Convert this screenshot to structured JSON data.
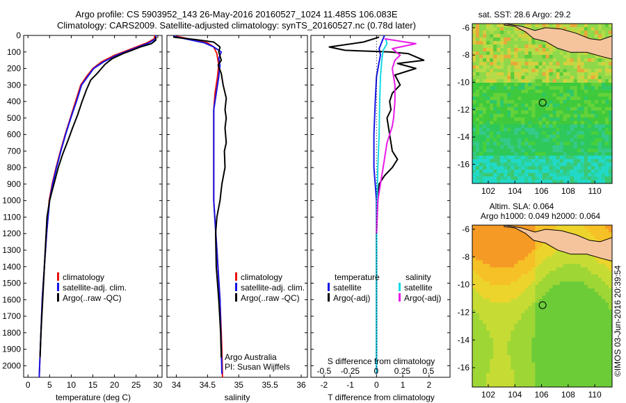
{
  "header": {
    "line1": "Argo profile: CS 5903952_143 26-May-2016 20160527_1024 11.485S 106.083E",
    "line2": "Climatology: CARS2009. Satellite-adjusted climatology: synTS_20160527.nc (0.78d later)"
  },
  "side_stamp": "©IMOS 03-Jun-2016 20:39:54",
  "colors": {
    "climatology": "#e8120f",
    "satellite": "#1414e6",
    "argo": "#000000",
    "sal_satellite": "#11d9e6",
    "sal_argo": "#e61ae6",
    "land": "#f5c49c"
  },
  "chart_data": [
    {
      "id": "temperature",
      "type": "line",
      "xlabel": "temperature (deg C)",
      "ylabel": "",
      "xlim": [
        -1,
        31
      ],
      "ylim": [
        0,
        2070
      ],
      "y_inverted": true,
      "xticks": [
        0,
        5,
        10,
        15,
        20,
        25,
        30
      ],
      "yticks": [
        0,
        100,
        200,
        300,
        400,
        500,
        600,
        700,
        800,
        900,
        1000,
        1100,
        1200,
        1300,
        1400,
        1500,
        1600,
        1700,
        1800,
        1900,
        2000
      ],
      "legend": [
        "climatology",
        "satellite-adj. clim.",
        "Argo(..raw -QC)"
      ],
      "series": [
        {
          "name": "climatology",
          "color": "#e8120f",
          "points": [
            [
              29.3,
              0
            ],
            [
              29.2,
              20
            ],
            [
              27.5,
              45
            ],
            [
              24,
              80
            ],
            [
              20,
              120
            ],
            [
              17,
              160
            ],
            [
              15,
              200
            ],
            [
              13.5,
              250
            ],
            [
              12.2,
              300
            ],
            [
              11,
              400
            ],
            [
              9.8,
              500
            ],
            [
              8.6,
              600
            ],
            [
              7.5,
              700
            ],
            [
              6.5,
              800
            ],
            [
              5.6,
              900
            ],
            [
              4.9,
              1000
            ],
            [
              4.3,
              1200
            ],
            [
              3.8,
              1400
            ],
            [
              3.3,
              1600
            ],
            [
              3,
              1800
            ],
            [
              2.7,
              2000
            ],
            [
              2.6,
              2070
            ]
          ]
        },
        {
          "name": "satellite-adj. clim.",
          "color": "#1414e6",
          "points": [
            [
              29.6,
              0
            ],
            [
              29.5,
              20
            ],
            [
              28,
              45
            ],
            [
              24.5,
              80
            ],
            [
              20.5,
              120
            ],
            [
              17.5,
              160
            ],
            [
              15.2,
              200
            ],
            [
              13.8,
              250
            ],
            [
              12.4,
              300
            ],
            [
              11.2,
              400
            ],
            [
              9.9,
              500
            ],
            [
              8.7,
              600
            ],
            [
              7.6,
              700
            ],
            [
              6.6,
              800
            ],
            [
              5.7,
              900
            ],
            [
              5,
              1000
            ],
            [
              4.3,
              1200
            ],
            [
              3.8,
              1400
            ],
            [
              3.3,
              1600
            ],
            [
              3,
              1800
            ],
            [
              2.7,
              2000
            ],
            [
              2.6,
              2070
            ]
          ]
        },
        {
          "name": "Argo(..raw -QC)",
          "color": "#000000",
          "points": [
            [
              29.6,
              10
            ],
            [
              29.5,
              30
            ],
            [
              28.5,
              50
            ],
            [
              26,
              70
            ],
            [
              24,
              90
            ],
            [
              22,
              110
            ],
            [
              19.5,
              140
            ],
            [
              17.8,
              175
            ],
            [
              17,
              200
            ],
            [
              16,
              230
            ],
            [
              14.5,
              270
            ],
            [
              13.5,
              330
            ],
            [
              12.5,
              400
            ],
            [
              11.5,
              480
            ],
            [
              10.3,
              560
            ],
            [
              9.2,
              640
            ],
            [
              8,
              720
            ],
            [
              7,
              800
            ],
            [
              6.2,
              880
            ],
            [
              5.5,
              950
            ],
            [
              5,
              1000
            ],
            [
              4.4,
              1100
            ],
            [
              4.2,
              1200
            ],
            [
              3.8,
              1400
            ],
            [
              3.4,
              1600
            ],
            [
              3,
              1800
            ],
            [
              2.8,
              1950
            ]
          ]
        }
      ]
    },
    {
      "id": "salinity",
      "type": "line",
      "xlabel": "salinity",
      "ylabel": "",
      "xlim": [
        33.85,
        36.1
      ],
      "ylim": [
        0,
        2070
      ],
      "y_inverted": true,
      "xticks": [
        34,
        34.5,
        35,
        35.5,
        36
      ],
      "xtick_labels": [
        "34",
        "34.5",
        "35",
        "35.5",
        "36"
      ],
      "legend": [
        "climatology",
        "satellite-adj. clim.",
        "Argo(..raw -QC)"
      ],
      "annotation": [
        "Argo Australia",
        "PI: Susan Wijffels"
      ],
      "series": [
        {
          "name": "climatology",
          "color": "#e8120f",
          "points": [
            [
              34.0,
              5
            ],
            [
              34.25,
              25
            ],
            [
              34.5,
              45
            ],
            [
              34.6,
              70
            ],
            [
              34.65,
              110
            ],
            [
              34.68,
              180
            ],
            [
              34.66,
              250
            ],
            [
              34.62,
              350
            ],
            [
              34.6,
              450
            ],
            [
              34.6,
              700
            ],
            [
              34.6,
              1000
            ],
            [
              34.65,
              1300
            ],
            [
              34.7,
              1600
            ],
            [
              34.73,
              1900
            ],
            [
              34.74,
              2070
            ]
          ]
        },
        {
          "name": "satellite-adj. clim.",
          "color": "#1414e6",
          "points": [
            [
              33.95,
              5
            ],
            [
              34.2,
              25
            ],
            [
              34.45,
              45
            ],
            [
              34.6,
              70
            ],
            [
              34.72,
              100
            ],
            [
              34.68,
              140
            ],
            [
              34.7,
              180
            ],
            [
              34.68,
              250
            ],
            [
              34.64,
              350
            ],
            [
              34.6,
              450
            ],
            [
              34.6,
              700
            ],
            [
              34.6,
              1000
            ],
            [
              34.65,
              1300
            ],
            [
              34.7,
              1600
            ],
            [
              34.72,
              1900
            ],
            [
              34.73,
              2050
            ]
          ]
        },
        {
          "name": "Argo(..raw -QC)",
          "color": "#000000",
          "points": [
            [
              33.95,
              10
            ],
            [
              34.3,
              25
            ],
            [
              34.6,
              40
            ],
            [
              34.7,
              70
            ],
            [
              34.68,
              100
            ],
            [
              34.72,
              150
            ],
            [
              34.67,
              180
            ],
            [
              34.72,
              230
            ],
            [
              34.75,
              300
            ],
            [
              34.8,
              380
            ],
            [
              34.78,
              450
            ],
            [
              34.8,
              500
            ],
            [
              34.78,
              560
            ],
            [
              34.8,
              650
            ],
            [
              34.77,
              700
            ],
            [
              34.78,
              800
            ],
            [
              34.73,
              900
            ],
            [
              34.7,
              1000
            ],
            [
              34.65,
              1100
            ],
            [
              34.63,
              1200
            ],
            [
              34.64,
              1400
            ],
            [
              34.68,
              1600
            ],
            [
              34.71,
              1800
            ],
            [
              34.72,
              1950
            ]
          ]
        }
      ]
    },
    {
      "id": "difference",
      "type": "line",
      "xlabel": "T difference from climatology",
      "top_axis_label": "S difference from climatology",
      "xlim": [
        -2.5,
        2.8
      ],
      "ylim": [
        0,
        2070
      ],
      "y_inverted": true,
      "xticks": [
        -2,
        -1,
        0,
        1,
        2
      ],
      "top_ticks": [
        -0.5,
        -0.25,
        0,
        0.25,
        0.5
      ],
      "legend_temperature_title": "temperature",
      "legend_salinity_title": "salinity",
      "legend": [
        "satellite",
        "Argo(-adj)",
        "satellite",
        "Argo(-adj)"
      ],
      "series": [
        {
          "name": "temperature satellite",
          "color": "#1414e6",
          "points": [
            [
              0.3,
              0
            ],
            [
              0.2,
              40
            ],
            [
              0.1,
              80
            ],
            [
              0.15,
              120
            ],
            [
              0.1,
              160
            ],
            [
              0,
              250
            ],
            [
              -0.05,
              400
            ],
            [
              -0.1,
              600
            ],
            [
              -0.1,
              800
            ],
            [
              0,
              1000
            ],
            [
              0,
              1300
            ],
            [
              0,
              1600
            ],
            [
              0,
              1900
            ],
            [
              0,
              2050
            ]
          ]
        },
        {
          "name": "temperature Argo(-adj)",
          "color": "#000000",
          "points": [
            [
              0.1,
              10
            ],
            [
              -0.5,
              40
            ],
            [
              -1.8,
              70
            ],
            [
              -1.2,
              90
            ],
            [
              0.5,
              100
            ],
            [
              1.2,
              110
            ],
            [
              1.8,
              150
            ],
            [
              0.8,
              170
            ],
            [
              1.5,
              200
            ],
            [
              0.7,
              240
            ],
            [
              0.9,
              300
            ],
            [
              0.6,
              350
            ],
            [
              0.5,
              400
            ],
            [
              0.55,
              450
            ],
            [
              0.4,
              500
            ],
            [
              0.45,
              550
            ],
            [
              0.5,
              600
            ],
            [
              0.6,
              700
            ],
            [
              0.8,
              750
            ],
            [
              0.6,
              800
            ],
            [
              0.3,
              850
            ],
            [
              0.1,
              900
            ],
            [
              0.05,
              1000
            ],
            [
              0,
              1200
            ],
            [
              0,
              1500
            ],
            [
              0,
              1800
            ],
            [
              0,
              1950
            ]
          ]
        },
        {
          "name": "salinity satellite",
          "color": "#11d9e6",
          "points": [
            [
              0.35,
              20
            ],
            [
              0.4,
              50
            ],
            [
              0.25,
              90
            ],
            [
              0.2,
              150
            ],
            [
              0.15,
              250
            ],
            [
              0.12,
              400
            ],
            [
              0.1,
              600
            ],
            [
              0.05,
              800
            ],
            [
              0.02,
              1000
            ],
            [
              0,
              1300
            ],
            [
              0,
              1600
            ],
            [
              0,
              1900
            ],
            [
              0,
              2050
            ]
          ]
        },
        {
          "name": "salinity Argo(-adj)",
          "color": "#e61ae6",
          "points": [
            [
              0.3,
              20
            ],
            [
              1.5,
              50
            ],
            [
              0.6,
              80
            ],
            [
              0.9,
              120
            ],
            [
              0.7,
              150
            ],
            [
              0.6,
              200
            ],
            [
              0.65,
              250
            ],
            [
              0.7,
              300
            ],
            [
              0.7,
              400
            ],
            [
              0.65,
              500
            ],
            [
              0.6,
              550
            ],
            [
              0.4,
              650
            ],
            [
              0.3,
              750
            ],
            [
              0.15,
              900
            ],
            [
              0.05,
              1000
            ],
            [
              0,
              1200
            ]
          ]
        }
      ]
    },
    {
      "id": "sst_map",
      "type": "heatmap",
      "title": "sat. SST: 28.6  Argo: 29.2",
      "xlim": [
        100.8,
        111.3
      ],
      "ylim": [
        -17.4,
        -5.7
      ],
      "xticks": [
        102,
        104,
        106,
        108,
        110
      ],
      "yticks": [
        -6,
        -8,
        -10,
        -12,
        -14,
        -16
      ],
      "profile_marker": [
        106.083,
        -11.485
      ]
    },
    {
      "id": "sla_map",
      "type": "heatmap",
      "title": [
        "Altim. SLA: 0.064",
        "Argo h1000: 0.049 h2000: 0.064"
      ],
      "xlim": [
        100.8,
        111.3
      ],
      "ylim": [
        -17.4,
        -5.7
      ],
      "xticks": [
        102,
        104,
        106,
        108,
        110
      ],
      "yticks": [
        -6,
        -8,
        -10,
        -12,
        -14,
        -16
      ],
      "profile_marker": [
        106.083,
        -11.485
      ]
    }
  ]
}
